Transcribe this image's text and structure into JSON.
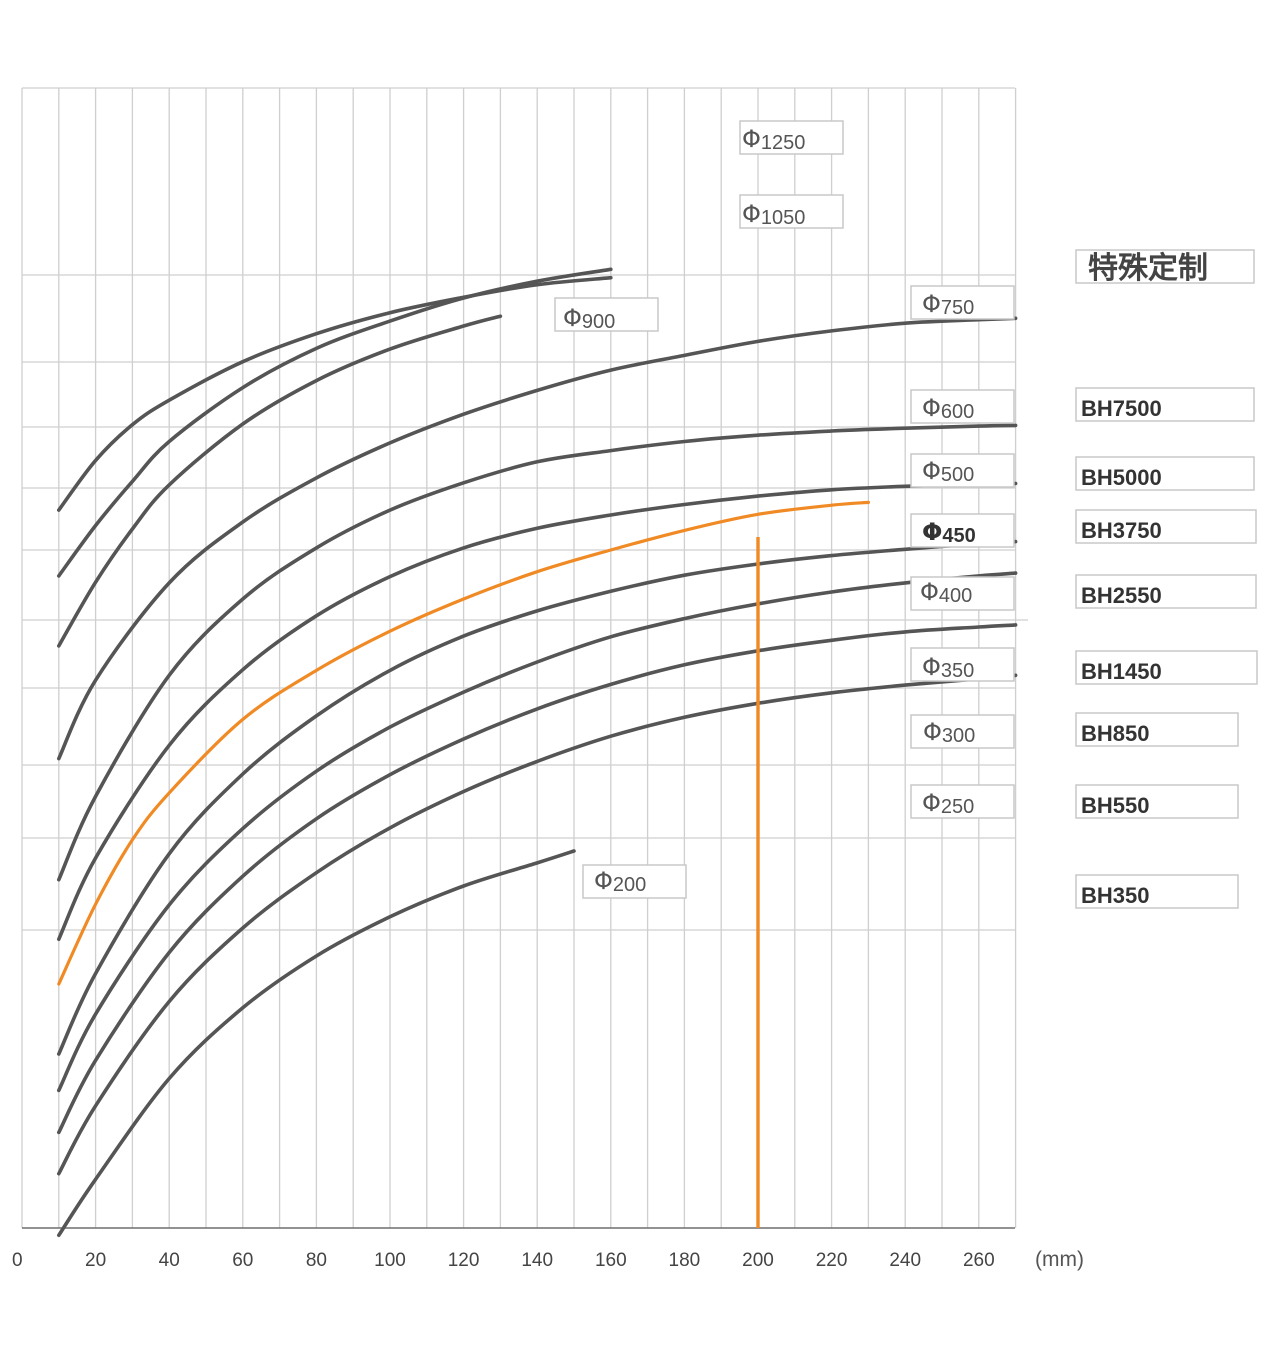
{
  "chart_data": {
    "type": "line",
    "title": "",
    "xlabel": "",
    "ylabel": "",
    "x_unit": "(mm)",
    "xlim": [
      0,
      270
    ],
    "x_ticks": [
      0,
      20,
      40,
      60,
      80,
      100,
      120,
      140,
      160,
      180,
      200,
      220,
      240,
      260
    ],
    "grid": true,
    "highlight_color": "#f08a24",
    "curve_color": "#555555",
    "series": [
      {
        "name": "Φ1250",
        "x": [
          10,
          20,
          30,
          40,
          60,
          80,
          100,
          120,
          140,
          160
        ],
        "y": [
          1.57,
          2.28,
          2.79,
          3.14,
          3.69,
          4.09,
          4.39,
          4.61,
          4.79,
          4.89
        ]
      },
      {
        "name": "Φ1050",
        "x": [
          10,
          20,
          30,
          40,
          60,
          80,
          100,
          120,
          140,
          160
        ],
        "y": [
          0.63,
          1.35,
          1.98,
          2.55,
          3.32,
          3.88,
          4.27,
          4.6,
          4.84,
          5.01
        ]
      },
      {
        "name": "Φ900",
        "x": [
          10,
          20,
          30,
          40,
          60,
          80,
          100,
          120,
          130
        ],
        "y": [
          -0.37,
          0.54,
          1.3,
          1.93,
          2.8,
          3.42,
          3.87,
          4.2,
          4.34
        ]
      },
      {
        "name": "Φ750",
        "x": [
          10,
          20,
          40,
          60,
          80,
          100,
          120,
          140,
          160,
          180,
          200,
          220,
          240,
          260,
          270
        ],
        "y": [
          -1.98,
          -0.86,
          0.53,
          1.4,
          2.03,
          2.53,
          2.94,
          3.28,
          3.57,
          3.78,
          3.98,
          4.13,
          4.24,
          4.29,
          4.31
        ]
      },
      {
        "name": "Φ600",
        "x": [
          10,
          20,
          40,
          60,
          80,
          100,
          120,
          140,
          160,
          180,
          200,
          220,
          240,
          260,
          270
        ],
        "y": [
          -3.71,
          -2.52,
          -0.79,
          0.3,
          1.03,
          1.57,
          1.96,
          2.26,
          2.42,
          2.55,
          2.64,
          2.7,
          2.74,
          2.77,
          2.78
        ]
      },
      {
        "name": "Φ500",
        "x": [
          10,
          20,
          40,
          60,
          80,
          100,
          120,
          140,
          160,
          180,
          200,
          220,
          240,
          260,
          270
        ],
        "y": [
          -4.56,
          -3.4,
          -1.79,
          -0.71,
          0.06,
          0.62,
          1.03,
          1.31,
          1.5,
          1.65,
          1.77,
          1.86,
          1.91,
          1.94,
          1.95
        ]
      },
      {
        "name": "Φ450",
        "x": [
          10,
          20,
          30,
          40,
          60,
          80,
          100,
          120,
          140,
          160,
          180,
          200,
          220,
          230
        ],
        "y": [
          -5.2,
          -4.06,
          -3.14,
          -2.47,
          -1.42,
          -0.72,
          -0.16,
          0.3,
          0.69,
          1.0,
          1.28,
          1.51,
          1.64,
          1.68
        ]
      },
      {
        "name": "Φ400",
        "x": [
          10,
          20,
          40,
          60,
          80,
          100,
          120,
          140,
          160,
          180,
          200,
          220,
          240,
          260,
          270
        ],
        "y": [
          -6.2,
          -5.05,
          -3.34,
          -2.2,
          -1.37,
          -0.72,
          -0.23,
          0.13,
          0.41,
          0.64,
          0.8,
          0.92,
          1.01,
          1.09,
          1.12
        ]
      },
      {
        "name": "Φ350",
        "x": [
          10,
          20,
          40,
          60,
          80,
          100,
          120,
          140,
          160,
          180,
          200,
          220,
          240,
          260,
          270
        ],
        "y": [
          -6.72,
          -5.63,
          -4.07,
          -2.98,
          -2.16,
          -1.53,
          -1.03,
          -0.6,
          -0.24,
          0.02,
          0.23,
          0.4,
          0.53,
          0.63,
          0.67
        ]
      },
      {
        "name": "Φ300",
        "x": [
          10,
          20,
          40,
          60,
          80,
          100,
          120,
          140,
          160,
          180,
          200,
          220,
          240,
          260,
          270
        ],
        "y": [
          -7.32,
          -6.29,
          -4.75,
          -3.66,
          -2.84,
          -2.21,
          -1.7,
          -1.27,
          -0.92,
          -0.64,
          -0.44,
          -0.29,
          -0.17,
          -0.1,
          -0.07
        ]
      },
      {
        "name": "Φ250",
        "x": [
          10,
          20,
          40,
          60,
          80,
          100,
          120,
          140,
          160,
          180,
          200,
          220,
          240,
          260,
          270
        ],
        "y": [
          -7.91,
          -6.94,
          -5.45,
          -4.4,
          -3.61,
          -2.97,
          -2.45,
          -2.02,
          -1.66,
          -1.39,
          -1.19,
          -1.04,
          -0.93,
          -0.84,
          -0.79
        ]
      },
      {
        "name": "Φ200",
        "x": [
          10,
          20,
          40,
          60,
          80,
          100,
          120,
          140,
          150
        ],
        "y": [
          -8.79,
          -7.99,
          -6.55,
          -5.54,
          -4.8,
          -4.24,
          -3.8,
          -3.47,
          -3.3
        ]
      }
    ],
    "marker": {
      "x": 200,
      "color": "#f08a24"
    },
    "phi_labels": [
      {
        "glyph": "Φ",
        "num": "1250"
      },
      {
        "glyph": "Φ",
        "num": "1050"
      },
      {
        "glyph": "Φ",
        "num": "900"
      },
      {
        "glyph": "Φ",
        "num": "750"
      },
      {
        "glyph": "Φ",
        "num": "600"
      },
      {
        "glyph": "Φ",
        "num": "500"
      },
      {
        "glyph": "Φ",
        "num": "450"
      },
      {
        "glyph": "Φ",
        "num": "400"
      },
      {
        "glyph": "Φ",
        "num": "350"
      },
      {
        "glyph": "Φ",
        "num": "300"
      },
      {
        "glyph": "Φ",
        "num": "250"
      },
      {
        "glyph": "Φ",
        "num": "200"
      }
    ],
    "model_labels": [
      "特殊定制",
      "BH7500",
      "BH5000",
      "BH3750",
      "BH2550",
      "BH1450",
      "BH850",
      "BH550",
      "BH350"
    ]
  }
}
